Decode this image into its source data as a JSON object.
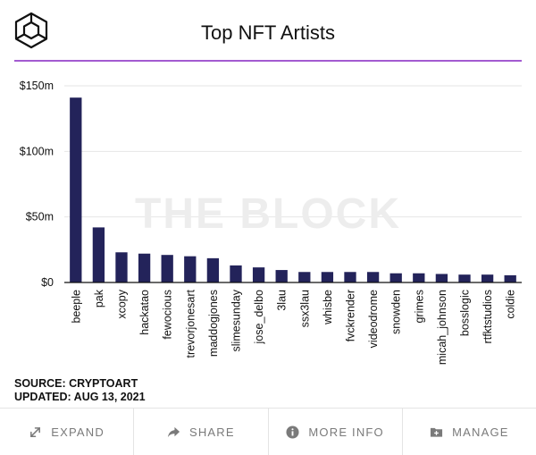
{
  "title": "Top NFT Artists",
  "watermark": "THE BLOCK",
  "source": {
    "line1": "SOURCE: CRYPTOART",
    "line2": "UPDATED: AUG 13, 2021"
  },
  "footer": {
    "expand": "EXPAND",
    "share": "SHARE",
    "more_info": "MORE INFO",
    "manage": "MANAGE"
  },
  "colors": {
    "bar": "#23235a",
    "accent_rule": "#a35bd1",
    "footer_text": "#7a7a7a"
  },
  "icons": {
    "logo": "the-block-cube-logo",
    "expand": "expand-arrows-icon",
    "share": "share-arrow-icon",
    "more_info": "info-circle-icon",
    "manage": "folder-plus-icon"
  },
  "chart_data": {
    "type": "bar",
    "title": "Top NFT Artists",
    "xlabel": "",
    "ylabel": "",
    "ylim": [
      0,
      150
    ],
    "yticks": [
      0,
      50,
      100,
      150
    ],
    "ytick_labels": [
      "$0",
      "$50m",
      "$100m",
      "$150m"
    ],
    "grid": true,
    "categories": [
      "beeple",
      "pak",
      "xcopy",
      "hackatao",
      "fewocious",
      "trevorjonesart",
      "maddogjones",
      "slimesunday",
      "jose_delbo",
      "3lau",
      "ssx3lau",
      "whisbe",
      "fvckrender",
      "videodrome",
      "snowden",
      "grimes",
      "micah_johnson",
      "bosslogic",
      "rtfktstudios",
      "coldie"
    ],
    "values": [
      141,
      42,
      23,
      22,
      21,
      20,
      18.5,
      13,
      11.5,
      9.5,
      8,
      8,
      8,
      8,
      7,
      7,
      6.5,
      6,
      6,
      5.5
    ]
  }
}
